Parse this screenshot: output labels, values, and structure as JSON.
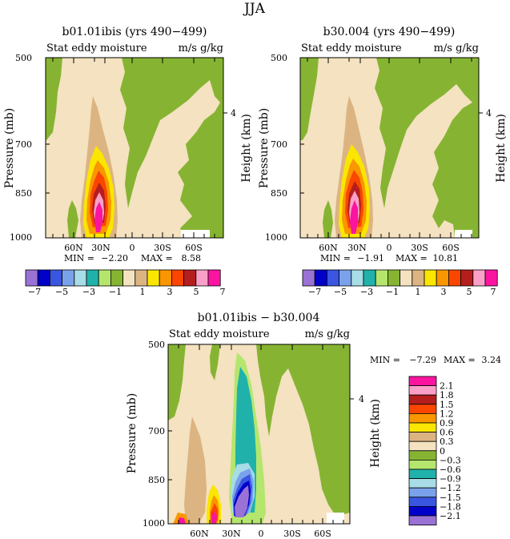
{
  "page": {
    "title": "JJA"
  },
  "colors": {
    "levels_14": [
      "#9a72d6",
      "#0000c8",
      "#3a56e0",
      "#7aa2ea",
      "#a8dce6",
      "#20b2aa",
      "#b4e66e",
      "#86b432",
      "#f4e2c0",
      "#dcb482",
      "#fae600",
      "#fa9600",
      "#fa4600",
      "#b41e1e",
      "#faa0c8",
      "#fa14a0"
    ],
    "diff": [
      "#9a72d6",
      "#0000c8",
      "#3a56e0",
      "#7aa2ea",
      "#a8dce6",
      "#20b2aa",
      "#b4e66e",
      "#86b432",
      "#f4e2c0",
      "#dcb482",
      "#fae600",
      "#fa9600",
      "#fa4600",
      "#b41e1e",
      "#faa0c8",
      "#fa14a0"
    ]
  },
  "panels": [
    {
      "title": "b01.01ibis (yrs 490−499)",
      "subtitle_left": "Stat eddy moisture",
      "subtitle_right": "m/s g/kg",
      "ylabel": "Pressure (mb)",
      "ylabel_right": "Height (km)",
      "minmax": {
        "min_label": "MIN =",
        "min": "−2.20",
        "max_label": "MAX =",
        "max": "8.58"
      }
    },
    {
      "title": "b30.004 (yrs 490−499)",
      "subtitle_left": "Stat eddy moisture",
      "subtitle_right": "m/s g/kg",
      "ylabel": "Pressure (mb)",
      "ylabel_right": "Height (km)",
      "minmax": {
        "min_label": "MIN =",
        "min": "−1.91",
        "max_label": "MAX =",
        "max": "10.81"
      }
    },
    {
      "title": "b01.01ibis − b30.004",
      "subtitle_left": "Stat eddy moisture",
      "subtitle_right": "m/s g/kg",
      "ylabel": "Pressure (mb)",
      "ylabel_right": "Height (km)",
      "minmax": {
        "min_label": "MIN =",
        "min": "−7.29",
        "max_label": "MAX =",
        "max": "3.24"
      }
    }
  ],
  "legend_top": {
    "labels": [
      "−7",
      "−5",
      "−3",
      "−1",
      "1",
      "3",
      "5",
      "7"
    ]
  },
  "legend_diff": {
    "labels": [
      "2.1",
      "1.8",
      "1.5",
      "1.2",
      "0.9",
      "0.6",
      "0.3",
      "0",
      "−0.3",
      "−0.6",
      "−0.9",
      "−1.2",
      "−1.5",
      "−1.8",
      "−2.1"
    ]
  },
  "chart_data": [
    {
      "type": "heatmap",
      "title": "b01.01ibis (yrs 490−499)",
      "xlabel": "",
      "ylabel": "Pressure (mb)",
      "x_ticks": [
        "60N",
        "30N",
        "0",
        "30S",
        "60S"
      ],
      "y_ticks": [
        "500",
        "700",
        "850",
        "1000"
      ],
      "y_right_ticks": [
        "4"
      ],
      "y_scale": "log",
      "ylim": [
        1000,
        500
      ],
      "min": -2.2,
      "max": 8.58
    },
    {
      "type": "heatmap",
      "title": "b30.004 (yrs 490−499)",
      "xlabel": "",
      "ylabel": "Pressure (mb)",
      "x_ticks": [
        "60N",
        "30N",
        "0",
        "30S",
        "60S"
      ],
      "y_ticks": [
        "500",
        "700",
        "850",
        "1000"
      ],
      "y_right_ticks": [
        "4"
      ],
      "y_scale": "log",
      "ylim": [
        1000,
        500
      ],
      "min": -1.91,
      "max": 10.81
    },
    {
      "type": "heatmap",
      "title": "b01.01ibis − b30.004",
      "xlabel": "",
      "ylabel": "Pressure (mb)",
      "x_ticks": [
        "60N",
        "30N",
        "0",
        "30S",
        "60S"
      ],
      "y_ticks": [
        "500",
        "700",
        "850",
        "1000"
      ],
      "y_right_ticks": [
        "4"
      ],
      "y_scale": "log",
      "ylim": [
        1000,
        500
      ],
      "min": -7.29,
      "max": 3.24
    }
  ]
}
